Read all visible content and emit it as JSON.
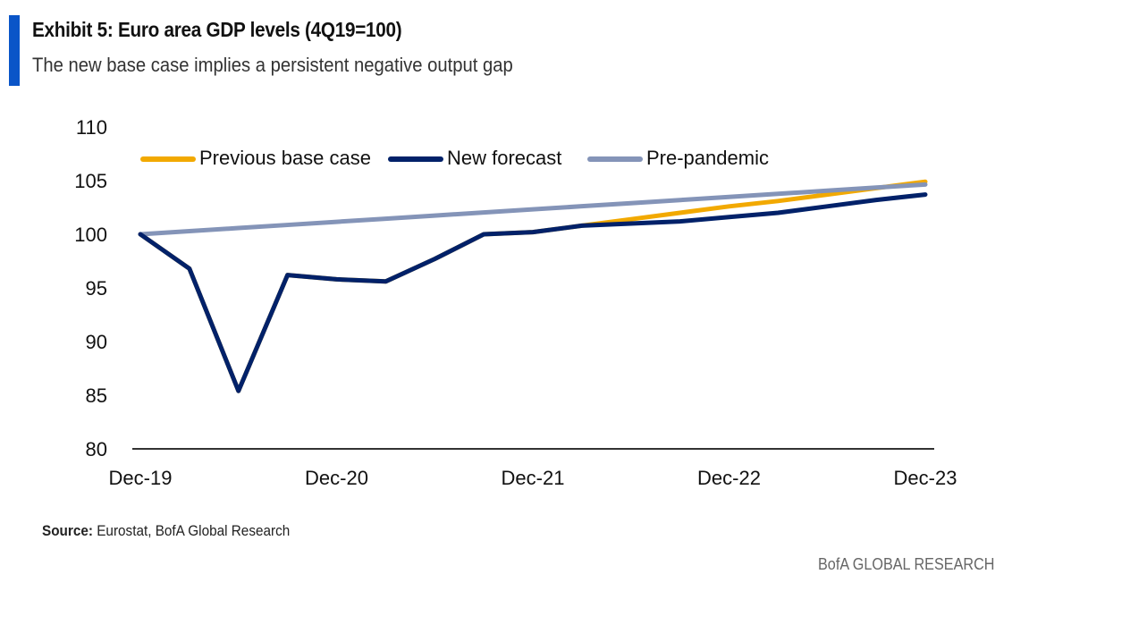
{
  "title": "Exhibit 5: Euro area GDP levels (4Q19=100)",
  "subtitle": "The new base case implies a persistent negative output gap",
  "source_label": "Source:",
  "source_text": "Eurostat, BofA Global Research",
  "brand": "BofA GLOBAL RESEARCH",
  "chart_data": {
    "type": "line",
    "x": [
      "Dec-19",
      "Mar-20",
      "Jun-20",
      "Sep-20",
      "Dec-20",
      "Mar-21",
      "Jun-21",
      "Sep-21",
      "Dec-21",
      "Mar-22",
      "Jun-22",
      "Sep-22",
      "Dec-22",
      "Mar-23",
      "Jun-23",
      "Sep-23",
      "Dec-23"
    ],
    "x_tick_labels": [
      "Dec-19",
      "Dec-20",
      "Dec-21",
      "Dec-22",
      "Dec-23"
    ],
    "y_tick_labels": [
      "80",
      "85",
      "90",
      "95",
      "100",
      "105",
      "110"
    ],
    "ylim": [
      80,
      110
    ],
    "grid": false,
    "legend_position": "top",
    "series": [
      {
        "name": "Previous base case",
        "color": "#f2a900",
        "values": [
          100,
          96.8,
          85.4,
          96.2,
          95.8,
          95.6,
          97.7,
          100.0,
          100.2,
          100.8,
          101.4,
          102.0,
          102.6,
          103.1,
          103.7,
          104.3,
          104.9
        ]
      },
      {
        "name": "New forecast",
        "color": "#012169",
        "values": [
          100,
          96.8,
          85.4,
          96.2,
          95.8,
          95.6,
          97.7,
          100.0,
          100.2,
          100.8,
          101.0,
          101.2,
          101.6,
          102.0,
          102.6,
          103.2,
          103.7
        ]
      },
      {
        "name": "Pre-pandemic",
        "color": "#8494b8",
        "values": [
          100,
          100.29,
          100.58,
          100.87,
          101.16,
          101.45,
          101.74,
          102.03,
          102.32,
          102.61,
          102.9,
          103.19,
          103.48,
          103.77,
          104.06,
          104.35,
          104.64
        ]
      }
    ]
  }
}
